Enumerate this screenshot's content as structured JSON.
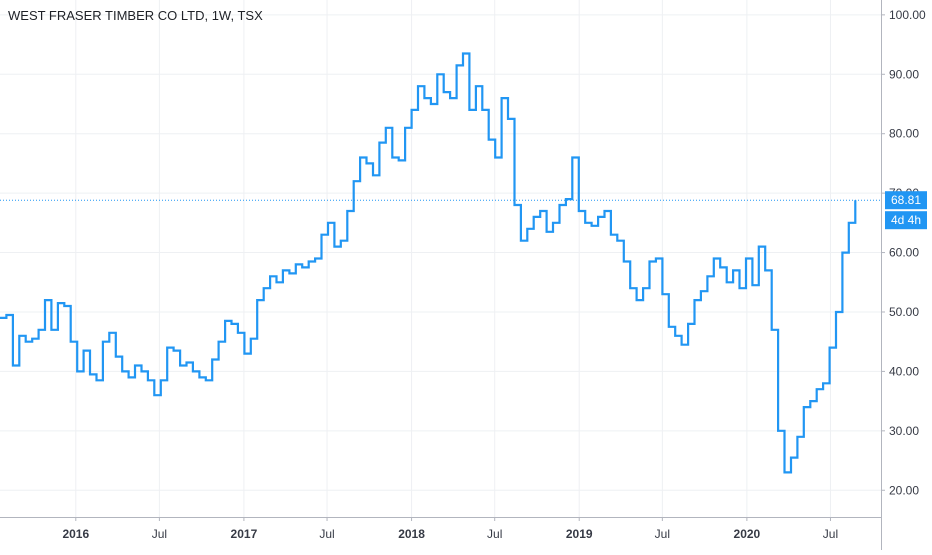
{
  "chart_data": {
    "type": "line",
    "title": "WEST FRASER TIMBER CO LTD, 1W, TSX",
    "xlabel": "",
    "ylabel": "",
    "ylim": [
      15.5,
      102.5
    ],
    "xlim": [
      "2015-07-20",
      "2020-10-19"
    ],
    "grid": true,
    "y_ticks": [
      "100.00",
      "90.00",
      "80.00",
      "70.00",
      "60.00",
      "50.00",
      "40.00",
      "30.00",
      "20.00"
    ],
    "y_tick_values": [
      100,
      90,
      80,
      70,
      60,
      50,
      40,
      30,
      20
    ],
    "x_ticks": [
      {
        "label": "2016",
        "date": "2016-01-01",
        "year": true
      },
      {
        "label": "Jul",
        "date": "2016-07-01",
        "year": false
      },
      {
        "label": "2017",
        "date": "2017-01-01",
        "year": true
      },
      {
        "label": "Jul",
        "date": "2017-07-01",
        "year": false
      },
      {
        "label": "2018",
        "date": "2018-01-01",
        "year": true
      },
      {
        "label": "Jul",
        "date": "2018-07-01",
        "year": false
      },
      {
        "label": "2019",
        "date": "2019-01-01",
        "year": true
      },
      {
        "label": "Jul",
        "date": "2019-07-01",
        "year": false
      },
      {
        "label": "2020",
        "date": "2020-01-01",
        "year": true
      },
      {
        "label": "Jul",
        "date": "2020-07-01",
        "year": false
      }
    ],
    "last_price": 68.81,
    "last_price_label": "68.81",
    "countdown_label": "4d 4h",
    "colors": {
      "line": "#2196f3",
      "grid": "#eef0f3",
      "axis": "#b2b5be",
      "label_bg": "#2196f3"
    },
    "series": [
      {
        "x": [
          "2015-07-20",
          "2015-08-03",
          "2015-08-17",
          "2015-08-31",
          "2015-09-14",
          "2015-09-28",
          "2015-10-12",
          "2015-10-26",
          "2015-11-09",
          "2015-11-23",
          "2015-12-07",
          "2015-12-21",
          "2016-01-04",
          "2016-01-18",
          "2016-02-01",
          "2016-02-15",
          "2016-02-29",
          "2016-03-14",
          "2016-03-28",
          "2016-04-11",
          "2016-04-25",
          "2016-05-09",
          "2016-05-23",
          "2016-06-06",
          "2016-06-20",
          "2016-07-04",
          "2016-07-18",
          "2016-08-01",
          "2016-08-15",
          "2016-08-29",
          "2016-09-12",
          "2016-09-26",
          "2016-10-10",
          "2016-10-24",
          "2016-11-07",
          "2016-11-21",
          "2016-12-05",
          "2016-12-19",
          "2017-01-02",
          "2017-01-16",
          "2017-01-30",
          "2017-02-13",
          "2017-02-27",
          "2017-03-13",
          "2017-03-27",
          "2017-04-10",
          "2017-04-24",
          "2017-05-08",
          "2017-05-22",
          "2017-06-05",
          "2017-06-19",
          "2017-07-03",
          "2017-07-17",
          "2017-07-31",
          "2017-08-14",
          "2017-08-28",
          "2017-09-11",
          "2017-09-25",
          "2017-10-09",
          "2017-10-23",
          "2017-11-06",
          "2017-11-20",
          "2017-12-04",
          "2017-12-18",
          "2018-01-01",
          "2018-01-15",
          "2018-01-29",
          "2018-02-12",
          "2018-02-26",
          "2018-03-12",
          "2018-03-26",
          "2018-04-09",
          "2018-04-23",
          "2018-05-07",
          "2018-05-21",
          "2018-06-04",
          "2018-06-18",
          "2018-07-02",
          "2018-07-16",
          "2018-07-30",
          "2018-08-13",
          "2018-08-27",
          "2018-09-10",
          "2018-09-24",
          "2018-10-08",
          "2018-10-22",
          "2018-11-05",
          "2018-11-19",
          "2018-12-03",
          "2018-12-17",
          "2018-12-31",
          "2019-01-14",
          "2019-01-28",
          "2019-02-11",
          "2019-02-25",
          "2019-03-11",
          "2019-03-25",
          "2019-04-08",
          "2019-04-22",
          "2019-05-06",
          "2019-05-20",
          "2019-06-03",
          "2019-06-17",
          "2019-07-01",
          "2019-07-15",
          "2019-07-29",
          "2019-08-12",
          "2019-08-26",
          "2019-09-09",
          "2019-09-23",
          "2019-10-07",
          "2019-10-21",
          "2019-11-04",
          "2019-11-18",
          "2019-12-02",
          "2019-12-16",
          "2019-12-30",
          "2020-01-13",
          "2020-01-27",
          "2020-02-10",
          "2020-02-24",
          "2020-03-09",
          "2020-03-23",
          "2020-04-06",
          "2020-04-20",
          "2020-05-04",
          "2020-05-18",
          "2020-06-01",
          "2020-06-15",
          "2020-06-29",
          "2020-07-13",
          "2020-07-27",
          "2020-08-10",
          "2020-08-24"
        ],
        "values": [
          49.0,
          49.5,
          41.0,
          46.0,
          45.0,
          45.5,
          47.0,
          52.0,
          47.0,
          51.5,
          51.0,
          45.0,
          40.0,
          43.5,
          39.5,
          38.5,
          45.0,
          46.5,
          42.5,
          40.0,
          39.0,
          41.0,
          40.0,
          38.5,
          36.0,
          38.5,
          44.0,
          43.5,
          41.0,
          41.5,
          40.0,
          39.0,
          38.5,
          42.0,
          45.0,
          48.5,
          48.0,
          46.5,
          43.0,
          45.5,
          52.0,
          54.0,
          56.0,
          55.0,
          57.0,
          56.5,
          58.0,
          57.5,
          58.5,
          59.0,
          63.0,
          65.0,
          61.0,
          62.0,
          67.0,
          72.0,
          76.0,
          75.0,
          73.0,
          78.5,
          81.0,
          76.0,
          75.5,
          81.0,
          84.0,
          88.0,
          86.0,
          85.0,
          90.0,
          87.0,
          86.0,
          91.5,
          93.5,
          84.0,
          88.0,
          84.0,
          79.0,
          76.0,
          86.0,
          82.5,
          68.0,
          62.0,
          64.0,
          66.0,
          67.0,
          63.5,
          65.0,
          68.0,
          69.0,
          76.0,
          67.0,
          65.0,
          64.5,
          66.0,
          67.0,
          63.0,
          62.0,
          58.5,
          54.0,
          52.0,
          54.0,
          58.5,
          59.0,
          53.0,
          47.5,
          46.0,
          44.5,
          48.0,
          52.0,
          53.5,
          56.0,
          59.0,
          57.5,
          55.0,
          57.0,
          54.0,
          59.0,
          54.5,
          61.0,
          57.0,
          47.0,
          30.0,
          23.0,
          25.5,
          29.0,
          34.0,
          35.0,
          37.0,
          38.0,
          44.0,
          50.0,
          60.0,
          65.0,
          68.81
        ]
      }
    ]
  }
}
